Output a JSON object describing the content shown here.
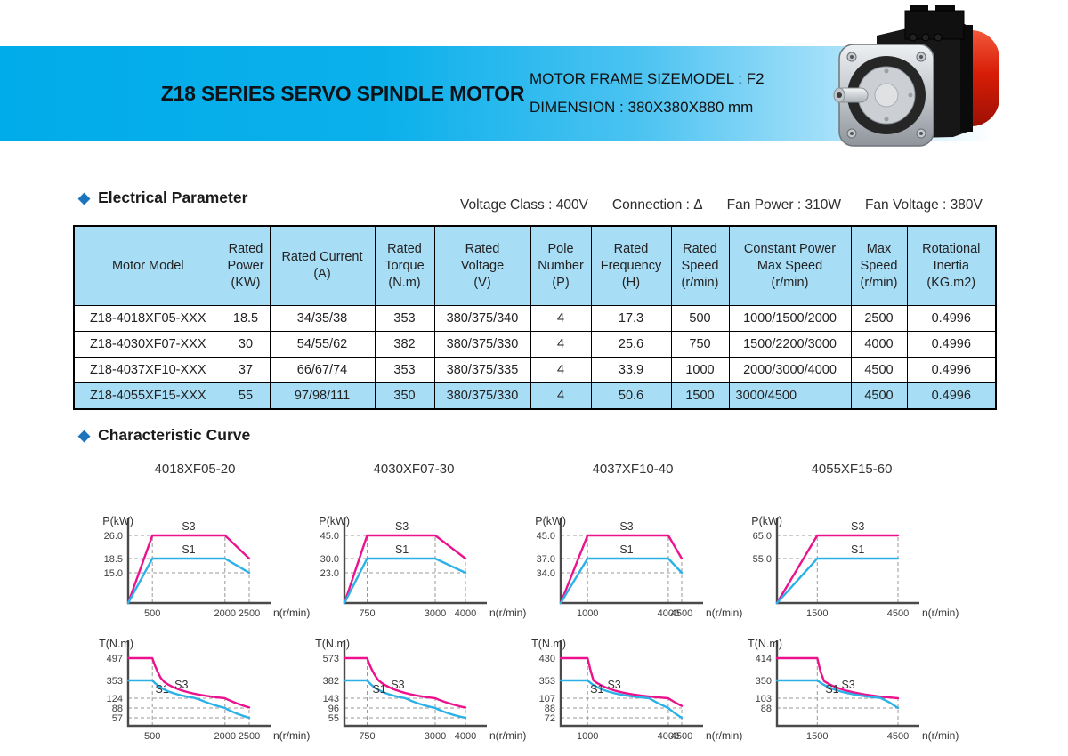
{
  "banner": {
    "title": "Z18 SERIES SERVO SPINDLE MOTOR",
    "frame_line": "MOTOR FRAME SIZEMODEL :  F2",
    "dimension_line": "DIMENSION :  380X380X880 mm"
  },
  "sections": {
    "electrical": "Electrical Parameter",
    "characteristic": "Characteristic Curve"
  },
  "electrical_info": [
    "Voltage Class :  400V",
    "Connection :  Δ",
    "Fan Power :  310W",
    "Fan Voltage :  380V"
  ],
  "table": {
    "headers": [
      "Motor Model",
      "Rated\nPower\n(KW)",
      "Rated Current\n(A)",
      "Rated\nTorque\n(N.m)",
      "Rated\nVoltage\n(V)",
      "Pole\nNumber\n(P)",
      "Rated\nFrequency\n(H)",
      "Rated\nSpeed\n(r/min)",
      "Constant Power\nMax Speed\n(r/min)",
      "Max\nSpeed\n(r/min)",
      "Rotational\nInertia\n(KG.m2)"
    ],
    "rows": [
      [
        "Z18-4018XF05-XXX",
        "18.5",
        "34/35/38",
        "353",
        "380/375/340",
        "4",
        "17.3",
        "500",
        "1000/1500/2000",
        "2500",
        "0.4996"
      ],
      [
        "Z18-4030XF07-XXX",
        "30",
        "54/55/62",
        "382",
        "380/375/330",
        "4",
        "25.6",
        "750",
        "1500/2200/3000",
        "4000",
        "0.4996"
      ],
      [
        "Z18-4037XF10-XXX",
        "37",
        "66/67/74",
        "353",
        "380/375/335",
        "4",
        "33.9",
        "1000",
        "2000/3000/4000",
        "4500",
        "0.4996"
      ],
      [
        "Z18-4055XF15-XXX",
        "55",
        "97/98/111",
        "350",
        "380/375/330",
        "4",
        "50.6",
        "1500",
        "3000/4500",
        "4500",
        "0.4996"
      ]
    ],
    "highlight_row_index": 3,
    "left_cells": [
      [
        3,
        8
      ]
    ],
    "header_bg": "#A8DDF6"
  },
  "characteristic": {
    "titles": [
      "4018XF05-20",
      "4030XF07-30",
      "4037XF10-40",
      "4055XF15-60"
    ],
    "colors": {
      "s3": "#EC128D",
      "s1": "#2BB1E7",
      "axis": "#4a4a4a",
      "dash": "#9a9a9a"
    }
  },
  "chart_data": [
    {
      "type": "line",
      "group": "power",
      "y_label": "P(kW)",
      "x_label": "n(r/min)",
      "y_ticks": [
        {
          "v": 26.0,
          "label": "26.0",
          "to": 500
        },
        {
          "v": 18.5,
          "label": "18.5",
          "to": 500
        },
        {
          "v": 15.0,
          "label": "15.0",
          "to": 2500
        }
      ],
      "x_ticks": [
        {
          "v": 500,
          "label": "500",
          "to": 26.0
        },
        {
          "v": 2000,
          "label": "2000",
          "to": 26.0
        },
        {
          "v": 2500,
          "label": "2500",
          "to": 18.5
        }
      ],
      "series": [
        {
          "name": "S3",
          "color": "s3",
          "label_at": [
            1250,
            26
          ],
          "points": [
            [
              0,
              0
            ],
            [
              500,
              26
            ],
            [
              2000,
              26
            ],
            [
              2500,
              18.5
            ]
          ]
        },
        {
          "name": "S1",
          "color": "s1",
          "label_at": [
            1250,
            18.5
          ],
          "points": [
            [
              0,
              0
            ],
            [
              500,
              18.5
            ],
            [
              2000,
              18.5
            ],
            [
              2500,
              15
            ]
          ]
        }
      ]
    },
    {
      "type": "line",
      "group": "power",
      "y_label": "P(kW)",
      "x_label": "n(r/min)",
      "y_ticks": [
        {
          "v": 45.0,
          "label": "45.0",
          "to": 750
        },
        {
          "v": 30.0,
          "label": "30.0",
          "to": 750
        },
        {
          "v": 23.0,
          "label": "23.0",
          "to": 4000
        }
      ],
      "x_ticks": [
        {
          "v": 750,
          "label": "750",
          "to": 45.0
        },
        {
          "v": 3000,
          "label": "3000",
          "to": 45.0
        },
        {
          "v": 4000,
          "label": "4000",
          "to": 30.0
        }
      ],
      "series": [
        {
          "name": "S3",
          "color": "s3",
          "label_at": [
            1900,
            45
          ],
          "points": [
            [
              0,
              0
            ],
            [
              750,
              45
            ],
            [
              3000,
              45
            ],
            [
              4000,
              30
            ]
          ]
        },
        {
          "name": "S1",
          "color": "s1",
          "label_at": [
            1900,
            30
          ],
          "points": [
            [
              0,
              0
            ],
            [
              750,
              30
            ],
            [
              3000,
              30
            ],
            [
              4000,
              23
            ]
          ]
        }
      ]
    },
    {
      "type": "line",
      "group": "power",
      "y_label": "P(kW)",
      "x_label": "n(r/min)",
      "y_ticks": [
        {
          "v": 45.0,
          "label": "45.0",
          "to": 1000
        },
        {
          "v": 37.0,
          "label": "37.0",
          "to": 1000
        },
        {
          "v": 34.0,
          "label": "34.0",
          "to": 4500
        }
      ],
      "x_ticks": [
        {
          "v": 1000,
          "label": "1000",
          "to": 45.0
        },
        {
          "v": 4000,
          "label": "4000",
          "to": 45.0
        },
        {
          "v": 4500,
          "label": "4500",
          "to": 37.0
        }
      ],
      "series": [
        {
          "name": "S3",
          "color": "s3",
          "label_at": [
            2450,
            45
          ],
          "points": [
            [
              0,
              0
            ],
            [
              1000,
              45
            ],
            [
              4000,
              45
            ],
            [
              4500,
              37
            ]
          ]
        },
        {
          "name": "S1",
          "color": "s1",
          "label_at": [
            2450,
            37
          ],
          "points": [
            [
              0,
              0
            ],
            [
              1000,
              37
            ],
            [
              4000,
              37
            ],
            [
              4500,
              34
            ]
          ]
        }
      ]
    },
    {
      "type": "line",
      "group": "power",
      "y_label": "P(kW)",
      "x_label": "n(r/min)",
      "y_ticks": [
        {
          "v": 65.0,
          "label": "65.0",
          "to": 1500
        },
        {
          "v": 55.0,
          "label": "55.0",
          "to": 1500
        }
      ],
      "x_ticks": [
        {
          "v": 1500,
          "label": "1500",
          "to": 65.0
        },
        {
          "v": 4500,
          "label": "4500",
          "to": 65.0
        }
      ],
      "series": [
        {
          "name": "S3",
          "color": "s3",
          "label_at": [
            3000,
            65
          ],
          "points": [
            [
              0,
              0
            ],
            [
              1500,
              65
            ],
            [
              4500,
              65
            ]
          ]
        },
        {
          "name": "S1",
          "color": "s1",
          "label_at": [
            3000,
            55
          ],
          "points": [
            [
              0,
              0
            ],
            [
              1500,
              55
            ],
            [
              4500,
              55
            ]
          ]
        }
      ]
    },
    {
      "type": "line",
      "group": "torque",
      "y_label": "T(N.m)",
      "x_label": "n(r/min)",
      "y_ticks": [
        {
          "v": 497,
          "label": "497",
          "to": 0
        },
        {
          "v": 353,
          "label": "353",
          "to": 0
        },
        {
          "v": 124,
          "label": "124",
          "to": 2000
        },
        {
          "v": 88,
          "label": "88",
          "to": 2500
        },
        {
          "v": 57,
          "label": "57",
          "to": 2500
        }
      ],
      "x_ticks": [
        {
          "v": 500,
          "label": "500",
          "to": 497
        },
        {
          "v": 2000,
          "label": "2000",
          "to": 124
        },
        {
          "v": 2500,
          "label": "2500",
          "to": 90
        }
      ],
      "series": [
        {
          "name": "S3",
          "color": "s3",
          "label_at": [
            1100,
            295
          ],
          "points": [
            [
              0,
              497
            ],
            [
              500,
              497
            ],
            [
              2000,
              124,
              "c"
            ],
            [
              2500,
              90,
              "c"
            ]
          ]
        },
        {
          "name": "S1",
          "color": "s1",
          "label_at": [
            700,
            240
          ],
          "points": [
            [
              0,
              353
            ],
            [
              500,
              353
            ],
            [
              2000,
              88,
              "c"
            ],
            [
              2500,
              57,
              "c"
            ]
          ]
        }
      ]
    },
    {
      "type": "line",
      "group": "torque",
      "y_label": "T(N.m)",
      "x_label": "n(r/min)",
      "y_ticks": [
        {
          "v": 573,
          "label": "573",
          "to": 0
        },
        {
          "v": 382,
          "label": "382",
          "to": 0
        },
        {
          "v": 143,
          "label": "143",
          "to": 3000
        },
        {
          "v": 96,
          "label": "96",
          "to": 4000
        },
        {
          "v": 55,
          "label": "55",
          "to": 4000
        }
      ],
      "x_ticks": [
        {
          "v": 750,
          "label": "750",
          "to": 573
        },
        {
          "v": 3000,
          "label": "3000",
          "to": 143
        },
        {
          "v": 4000,
          "label": "4000",
          "to": 98
        }
      ],
      "series": [
        {
          "name": "S3",
          "color": "s3",
          "label_at": [
            1765,
            320
          ],
          "points": [
            [
              0,
              573
            ],
            [
              750,
              573
            ],
            [
              3000,
              143,
              "c"
            ],
            [
              4000,
              98,
              "c"
            ]
          ]
        },
        {
          "name": "S1",
          "color": "s1",
          "label_at": [
            1150,
            260
          ],
          "points": [
            [
              0,
              382
            ],
            [
              750,
              382
            ],
            [
              3000,
              96,
              "c"
            ],
            [
              4000,
              55,
              "c"
            ]
          ]
        }
      ]
    },
    {
      "type": "line",
      "group": "torque",
      "y_label": "T(N.m)",
      "x_label": "n(r/min)",
      "y_ticks": [
        {
          "v": 430,
          "label": "430",
          "to": 0
        },
        {
          "v": 353,
          "label": "353",
          "to": 0
        },
        {
          "v": 107,
          "label": "107",
          "to": 4000
        },
        {
          "v": 88,
          "label": "88",
          "to": 4500
        },
        {
          "v": 72,
          "label": "72",
          "to": 4500
        }
      ],
      "x_ticks": [
        {
          "v": 1000,
          "label": "1000",
          "to": 430
        },
        {
          "v": 4000,
          "label": "4000",
          "to": 107
        },
        {
          "v": 4500,
          "label": "4500",
          "to": 92
        }
      ],
      "series": [
        {
          "name": "S3",
          "color": "s3",
          "label_at": [
            1990,
            290
          ],
          "points": [
            [
              0,
              430
            ],
            [
              1000,
              430
            ],
            [
              4000,
              107,
              "c"
            ],
            [
              4500,
              92,
              "c"
            ]
          ]
        },
        {
          "name": "S1",
          "color": "s1",
          "label_at": [
            1350,
            230
          ],
          "points": [
            [
              0,
              353
            ],
            [
              1000,
              353
            ],
            [
              4000,
              88,
              "c"
            ],
            [
              4500,
              72,
              "c"
            ]
          ]
        }
      ]
    },
    {
      "type": "line",
      "group": "torque",
      "y_label": "T(N.m)",
      "x_label": "n(r/min)",
      "y_ticks": [
        {
          "v": 414,
          "label": "414",
          "to": 0
        },
        {
          "v": 350,
          "label": "350",
          "to": 0
        },
        {
          "v": 103,
          "label": "103",
          "to": 4500
        },
        {
          "v": 88,
          "label": "88",
          "to": 4500
        }
      ],
      "x_ticks": [
        {
          "v": 1500,
          "label": "1500",
          "to": 414
        },
        {
          "v": 4500,
          "label": "4500",
          "to": 103
        }
      ],
      "series": [
        {
          "name": "S3",
          "color": "s3",
          "label_at": [
            2650,
            290
          ],
          "points": [
            [
              0,
              414
            ],
            [
              1500,
              414
            ],
            [
              4500,
              103,
              "c"
            ]
          ]
        },
        {
          "name": "S1",
          "color": "s1",
          "label_at": [
            2050,
            225
          ],
          "points": [
            [
              0,
              350
            ],
            [
              1500,
              350
            ],
            [
              4500,
              88,
              "c"
            ]
          ]
        }
      ]
    }
  ]
}
